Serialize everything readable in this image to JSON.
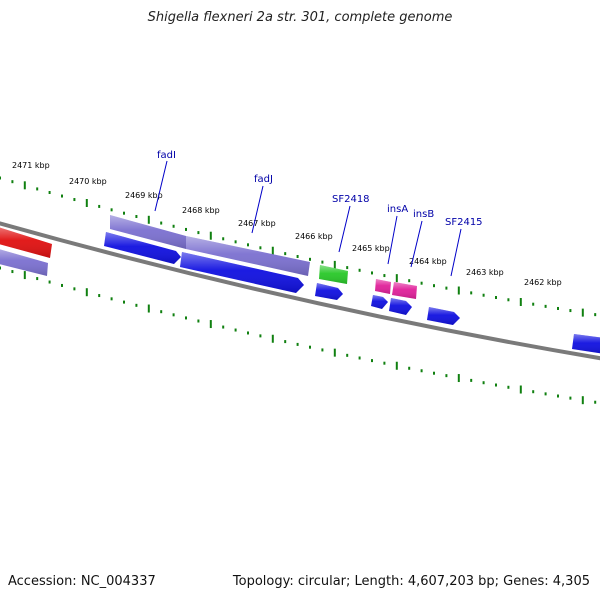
{
  "title": "Shigella flexneri 2a str. 301, complete genome",
  "footer": {
    "accession": "Accession: NC_004337",
    "summary": "Topology: circular; Length: 4,607,203 bp; Genes: 4,305"
  },
  "colors": {
    "backbone": "#7a7a7a",
    "tick": "#108010",
    "label_line": "#0000c8",
    "gene_blue": "#1010e0",
    "gene_purple": "#7b70d0",
    "gene_red": "#e01010",
    "gene_green": "#28c828",
    "gene_pink": "#e0209a"
  },
  "scale": [
    {
      "text": "2471 kbp"
    },
    {
      "text": "2470 kbp"
    },
    {
      "text": "2469 kbp"
    },
    {
      "text": "2468 kbp"
    },
    {
      "text": "2467 kbp"
    },
    {
      "text": "2466 kbp"
    },
    {
      "text": "2465 kbp"
    },
    {
      "text": "2464 kbp"
    },
    {
      "text": "2463 kbp"
    },
    {
      "text": "2462 kbp"
    }
  ],
  "gene_labels": [
    {
      "text": "fadI"
    },
    {
      "text": "fadJ"
    },
    {
      "text": "SF2418"
    },
    {
      "text": "insA"
    },
    {
      "text": "insB"
    },
    {
      "text": "SF2415"
    }
  ],
  "features": [
    {
      "name": "feature-red",
      "color": "gene_red"
    },
    {
      "name": "feature-purple-left",
      "color": "gene_purple"
    },
    {
      "name": "feature-purple-fadi",
      "color": "gene_purple"
    },
    {
      "name": "feature-purple-fadj",
      "color": "gene_purple"
    },
    {
      "name": "feature-blue-fadi",
      "color": "gene_blue"
    },
    {
      "name": "feature-blue-fadj",
      "color": "gene_blue"
    },
    {
      "name": "feature-green-sf2418",
      "color": "gene_green"
    },
    {
      "name": "feature-blue-sf2418",
      "color": "gene_blue"
    },
    {
      "name": "feature-pink-insa",
      "color": "gene_pink"
    },
    {
      "name": "feature-pink-insb",
      "color": "gene_pink"
    },
    {
      "name": "feature-blue-insa",
      "color": "gene_blue"
    },
    {
      "name": "feature-blue-insb",
      "color": "gene_blue"
    },
    {
      "name": "feature-blue-sf2415",
      "color": "gene_blue"
    },
    {
      "name": "feature-blue-right",
      "color": "gene_blue"
    }
  ]
}
